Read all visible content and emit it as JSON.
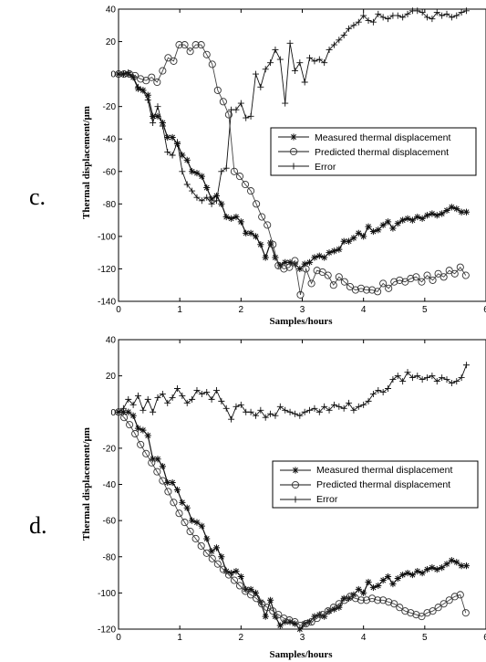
{
  "chart_data": [
    {
      "type": "line",
      "panel_label": "c.",
      "xlabel": "Samples/hours",
      "ylabel": "Thermal displacement/μm",
      "xlim": [
        0,
        6
      ],
      "ylim": [
        -140,
        40
      ],
      "xticks": [
        "0",
        "1",
        "2",
        "3",
        "4",
        "5",
        "6"
      ],
      "yticks": [
        "-140",
        "-120",
        "-100",
        "-80",
        "-60",
        "-40",
        "-20",
        "0",
        "20",
        "40"
      ],
      "grid": false,
      "legend_position": "right-middle",
      "series": [
        {
          "name": "Measured thermal displacement",
          "marker": "star",
          "x": [
            0.0,
            0.08,
            0.16,
            0.24,
            0.32,
            0.4,
            0.48,
            0.56,
            0.64,
            0.72,
            0.8,
            0.88,
            0.96,
            1.04,
            1.12,
            1.2,
            1.28,
            1.36,
            1.44,
            1.52,
            1.6,
            1.68,
            1.76,
            1.84,
            1.92,
            2.0,
            2.08,
            2.16,
            2.24,
            2.32,
            2.4,
            2.48,
            2.56,
            2.64,
            2.72,
            2.8,
            2.88,
            2.96,
            3.04,
            3.12,
            3.2,
            3.28,
            3.36,
            3.44,
            3.52,
            3.6,
            3.68,
            3.76,
            3.84,
            3.92,
            4.0,
            4.08,
            4.16,
            4.24,
            4.32,
            4.4,
            4.48,
            4.56,
            4.64,
            4.72,
            4.8,
            4.88,
            4.96,
            5.04,
            5.12,
            5.2,
            5.28,
            5.36,
            5.44,
            5.52,
            5.6,
            5.68
          ],
          "y": [
            0,
            0,
            0,
            -2,
            -9,
            -10,
            -13,
            -26,
            -26,
            -30,
            -39,
            -39,
            -43,
            -50,
            -53,
            -60,
            -61,
            -63,
            -70,
            -77,
            -75,
            -80,
            -88,
            -89,
            -88,
            -91,
            -98,
            -98,
            -100,
            -105,
            -113,
            -104,
            -113,
            -118,
            -116,
            -116,
            -117,
            -120,
            -117,
            -116,
            -113,
            -112,
            -113,
            -110,
            -109,
            -108,
            -103,
            -103,
            -101,
            -98,
            -100,
            -94,
            -97,
            -96,
            -93,
            -91,
            -95,
            -92,
            -90,
            -89,
            -90,
            -88,
            -89,
            -87,
            -86,
            -87,
            -86,
            -84,
            -82,
            -83,
            -85,
            -85
          ]
        },
        {
          "name": "Predicted thermal displacement",
          "marker": "circle",
          "x": [
            0.0,
            0.09,
            0.18,
            0.27,
            0.36,
            0.45,
            0.54,
            0.63,
            0.72,
            0.81,
            0.9,
            0.99,
            1.08,
            1.17,
            1.26,
            1.35,
            1.44,
            1.53,
            1.62,
            1.71,
            1.8,
            1.89,
            1.98,
            2.07,
            2.16,
            2.25,
            2.34,
            2.43,
            2.52,
            2.61,
            2.7,
            2.79,
            2.88,
            2.97,
            3.06,
            3.15,
            3.24,
            3.33,
            3.42,
            3.51,
            3.6,
            3.69,
            3.78,
            3.87,
            3.96,
            4.05,
            4.14,
            4.23,
            4.32,
            4.41,
            4.5,
            4.59,
            4.68,
            4.77,
            4.86,
            4.95,
            5.04,
            5.13,
            5.22,
            5.31,
            5.4,
            5.49,
            5.58,
            5.67
          ],
          "y": [
            0,
            0,
            0,
            -1,
            -3,
            -4,
            -2,
            -5,
            2,
            10,
            8,
            18,
            18,
            14,
            18,
            18,
            12,
            6,
            -10,
            -17,
            -25,
            -60,
            -63,
            -68,
            -72,
            -80,
            -88,
            -93,
            -105,
            -118,
            -120,
            -119,
            -115,
            -136,
            -120,
            -129,
            -121,
            -122,
            -124,
            -130,
            -125,
            -128,
            -131,
            -133,
            -132,
            -133,
            -133,
            -134,
            -129,
            -132,
            -128,
            -127,
            -128,
            -126,
            -125,
            -128,
            -124,
            -127,
            -123,
            -125,
            -121,
            -123,
            -119,
            -124
          ]
        },
        {
          "name": "Error",
          "marker": "plus",
          "x": [
            0.0,
            0.08,
            0.16,
            0.24,
            0.32,
            0.4,
            0.48,
            0.56,
            0.64,
            0.72,
            0.8,
            0.88,
            0.96,
            1.04,
            1.12,
            1.2,
            1.28,
            1.36,
            1.44,
            1.52,
            1.6,
            1.68,
            1.76,
            1.84,
            1.92,
            2.0,
            2.08,
            2.16,
            2.24,
            2.32,
            2.4,
            2.48,
            2.56,
            2.64,
            2.72,
            2.8,
            2.88,
            2.96,
            3.04,
            3.12,
            3.2,
            3.28,
            3.36,
            3.44,
            3.52,
            3.6,
            3.68,
            3.76,
            3.84,
            3.92,
            4.0,
            4.08,
            4.16,
            4.24,
            4.32,
            4.4,
            4.48,
            4.56,
            4.64,
            4.72,
            4.8,
            4.88,
            4.96,
            5.04,
            5.12,
            5.2,
            5.28,
            5.36,
            5.44,
            5.52,
            5.6,
            5.68
          ],
          "y": [
            0,
            0,
            1,
            -2,
            -8,
            -10,
            -16,
            -30,
            -20,
            -32,
            -48,
            -50,
            -42,
            -60,
            -68,
            -72,
            -76,
            -78,
            -76,
            -80,
            -78,
            -60,
            -58,
            -22,
            -22,
            -18,
            -27,
            -26,
            0,
            -8,
            3,
            7,
            15,
            9,
            -18,
            19,
            2,
            7,
            -5,
            10,
            8,
            9,
            7,
            15,
            18,
            21,
            24,
            28,
            30,
            32,
            36,
            33,
            32,
            37,
            35,
            34,
            36,
            36,
            35,
            37,
            39,
            39,
            38,
            35,
            34,
            38,
            36,
            37,
            35,
            36,
            38,
            39
          ]
        }
      ]
    },
    {
      "type": "line",
      "panel_label": "d.",
      "xlabel": "Samples/hours",
      "ylabel": "Thermal displacement/μm",
      "xlim": [
        0,
        6
      ],
      "ylim": [
        -120,
        40
      ],
      "xticks": [
        "0",
        "1",
        "2",
        "3",
        "4",
        "5",
        "6"
      ],
      "yticks": [
        "-120",
        "-100",
        "-80",
        "-60",
        "-40",
        "-20",
        "0",
        "20",
        "40"
      ],
      "grid": false,
      "legend_position": "right-middle",
      "series": [
        {
          "name": "Measured thermal displacement",
          "marker": "star",
          "x": [
            0.0,
            0.08,
            0.16,
            0.24,
            0.32,
            0.4,
            0.48,
            0.56,
            0.64,
            0.72,
            0.8,
            0.88,
            0.96,
            1.04,
            1.12,
            1.2,
            1.28,
            1.36,
            1.44,
            1.52,
            1.6,
            1.68,
            1.76,
            1.84,
            1.92,
            2.0,
            2.08,
            2.16,
            2.24,
            2.32,
            2.4,
            2.48,
            2.56,
            2.64,
            2.72,
            2.8,
            2.88,
            2.96,
            3.04,
            3.12,
            3.2,
            3.28,
            3.36,
            3.44,
            3.52,
            3.6,
            3.68,
            3.76,
            3.84,
            3.92,
            4.0,
            4.08,
            4.16,
            4.24,
            4.32,
            4.4,
            4.48,
            4.56,
            4.64,
            4.72,
            4.8,
            4.88,
            4.96,
            5.04,
            5.12,
            5.2,
            5.28,
            5.36,
            5.44,
            5.52,
            5.6,
            5.68
          ],
          "y": [
            0,
            0,
            0,
            -2,
            -9,
            -10,
            -13,
            -26,
            -26,
            -30,
            -39,
            -39,
            -43,
            -50,
            -53,
            -60,
            -61,
            -63,
            -70,
            -77,
            -75,
            -80,
            -88,
            -89,
            -88,
            -91,
            -98,
            -98,
            -100,
            -105,
            -113,
            -104,
            -113,
            -118,
            -116,
            -116,
            -117,
            -120,
            -117,
            -116,
            -113,
            -112,
            -113,
            -110,
            -109,
            -108,
            -103,
            -103,
            -101,
            -98,
            -100,
            -94,
            -97,
            -96,
            -93,
            -91,
            -95,
            -92,
            -90,
            -89,
            -90,
            -88,
            -89,
            -87,
            -86,
            -87,
            -86,
            -84,
            -82,
            -83,
            -85,
            -85
          ]
        },
        {
          "name": "Predicted thermal displacement",
          "marker": "circle",
          "x": [
            0.0,
            0.09,
            0.18,
            0.27,
            0.36,
            0.45,
            0.54,
            0.63,
            0.72,
            0.81,
            0.9,
            0.99,
            1.08,
            1.17,
            1.26,
            1.35,
            1.44,
            1.53,
            1.62,
            1.71,
            1.8,
            1.89,
            1.98,
            2.07,
            2.16,
            2.25,
            2.34,
            2.43,
            2.52,
            2.61,
            2.7,
            2.79,
            2.88,
            2.97,
            3.06,
            3.15,
            3.24,
            3.33,
            3.42,
            3.51,
            3.6,
            3.69,
            3.78,
            3.87,
            3.96,
            4.05,
            4.14,
            4.23,
            4.32,
            4.41,
            4.5,
            4.59,
            4.68,
            4.77,
            4.86,
            4.95,
            5.04,
            5.13,
            5.22,
            5.31,
            5.4,
            5.49,
            5.58,
            5.67
          ],
          "y": [
            0,
            -3,
            -7,
            -12,
            -18,
            -23,
            -28,
            -33,
            -38,
            -44,
            -50,
            -56,
            -61,
            -66,
            -70,
            -74,
            -78,
            -81,
            -84,
            -87,
            -90,
            -93,
            -96,
            -99,
            -101,
            -103,
            -106,
            -108,
            -110,
            -112,
            -114,
            -115,
            -116,
            -118,
            -117,
            -116,
            -114,
            -112,
            -110,
            -108,
            -106,
            -104,
            -102,
            -103,
            -104,
            -104,
            -103,
            -104,
            -104,
            -105,
            -106,
            -108,
            -110,
            -111,
            -112,
            -113,
            -111,
            -110,
            -108,
            -106,
            -104,
            -102,
            -101,
            -111
          ]
        },
        {
          "name": "Error",
          "marker": "plus",
          "x": [
            0.0,
            0.08,
            0.16,
            0.24,
            0.32,
            0.4,
            0.48,
            0.56,
            0.64,
            0.72,
            0.8,
            0.88,
            0.96,
            1.04,
            1.12,
            1.2,
            1.28,
            1.36,
            1.44,
            1.52,
            1.6,
            1.68,
            1.76,
            1.84,
            1.92,
            2.0,
            2.08,
            2.16,
            2.24,
            2.32,
            2.4,
            2.48,
            2.56,
            2.64,
            2.72,
            2.8,
            2.88,
            2.96,
            3.04,
            3.12,
            3.2,
            3.28,
            3.36,
            3.44,
            3.52,
            3.6,
            3.68,
            3.76,
            3.84,
            3.92,
            4.0,
            4.08,
            4.16,
            4.24,
            4.32,
            4.4,
            4.48,
            4.56,
            4.64,
            4.72,
            4.8,
            4.88,
            4.96,
            5.04,
            5.12,
            5.2,
            5.28,
            5.36,
            5.44,
            5.52,
            5.6,
            5.68
          ],
          "y": [
            0,
            2,
            7,
            4,
            9,
            1,
            7,
            0,
            8,
            10,
            5,
            8,
            13,
            9,
            5,
            7,
            12,
            10,
            11,
            7,
            12,
            6,
            2,
            -4,
            3,
            4,
            0,
            0,
            -2,
            1,
            -3,
            -1,
            -2,
            3,
            1,
            0,
            -1,
            -2,
            0,
            1,
            2,
            0,
            3,
            1,
            4,
            3,
            2,
            5,
            1,
            3,
            4,
            6,
            10,
            12,
            11,
            13,
            18,
            20,
            17,
            22,
            19,
            20,
            18,
            19,
            20,
            17,
            19,
            18,
            16,
            17,
            19,
            26
          ]
        }
      ]
    }
  ]
}
